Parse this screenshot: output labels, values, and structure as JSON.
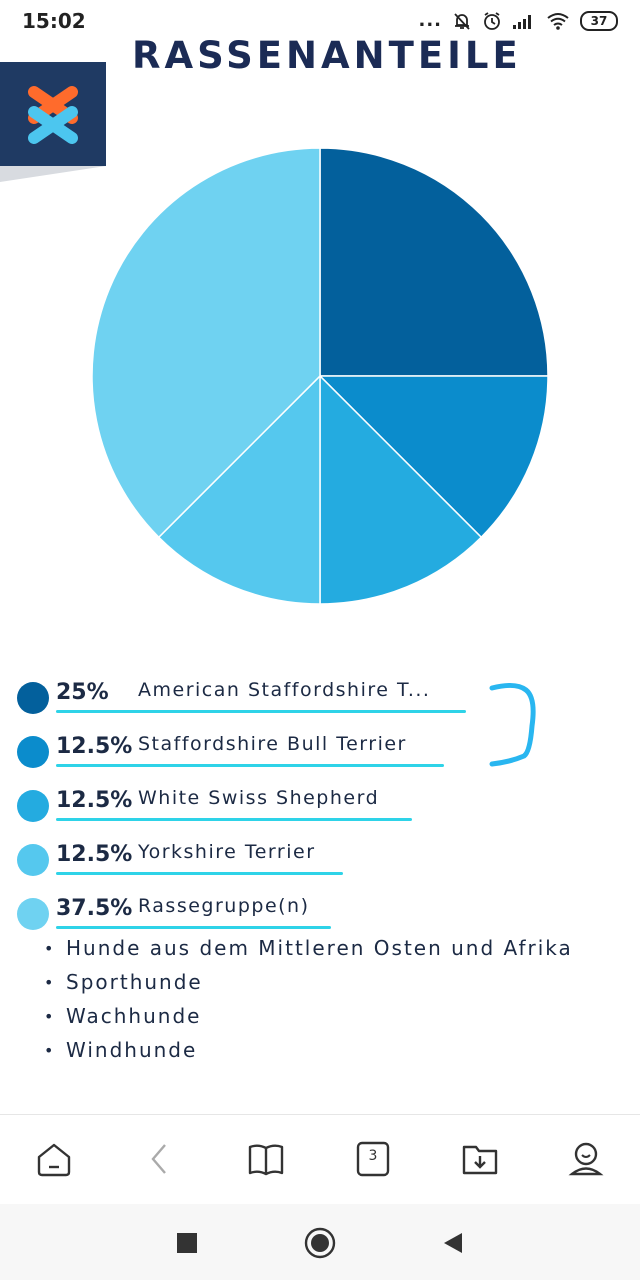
{
  "status_bar": {
    "time": "15:02",
    "dots": "...",
    "battery": "37"
  },
  "page": {
    "title": "RASSENANTEILE"
  },
  "colors": {
    "slice_1": "#03609c",
    "slice_2": "#0b8ccc",
    "slice_3": "#24abe0",
    "slice_4": "#55c8ee",
    "slice_5": "#6fd2f1",
    "underline": "#2ed3e8",
    "logo_bg": "#1f3a63"
  },
  "chart_data": {
    "type": "pie",
    "categories": [
      "American Staffordshire T...",
      "Staffordshire Bull Terrier",
      "White Swiss Shepherd",
      "Yorkshire Terrier",
      "Rassegruppe(n)"
    ],
    "values": [
      25,
      12.5,
      12.5,
      12.5,
      37.5
    ],
    "title": "RASSENANTEILE",
    "legend": "bottom"
  },
  "legend": [
    {
      "pct": "25%",
      "label": "American Staffordshire T..."
    },
    {
      "pct": "12.5%",
      "label": "Staffordshire Bull Terrier"
    },
    {
      "pct": "12.5%",
      "label": "White Swiss Shepherd"
    },
    {
      "pct": "12.5%",
      "label": "Yorkshire Terrier"
    },
    {
      "pct": "37.5%",
      "label": "Rassegruppe(n)"
    }
  ],
  "breed_groups": [
    "Hunde aus dem Mittleren Osten und Afrika",
    "Sporthunde",
    "Wachhunde",
    "Windhunde"
  ],
  "toolbar": {
    "tabs_count": "3",
    "icons": [
      "home-icon",
      "back-arrow-icon",
      "book-icon",
      "tabs-icon",
      "download-folder-icon",
      "profile-icon"
    ]
  },
  "nav": {
    "icons": [
      "recents-square-icon",
      "home-circle-icon",
      "back-triangle-icon"
    ]
  }
}
